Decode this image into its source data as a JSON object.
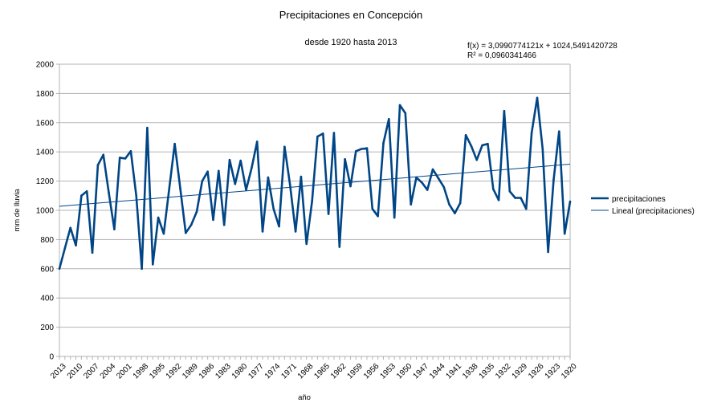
{
  "chart_data": {
    "type": "line",
    "title": "Precipitaciones en Concepción",
    "subtitle": "desde 1920 hasta 2013",
    "xlabel": "año",
    "ylabel": "mm de lluvia",
    "ylim": [
      0,
      2000
    ],
    "yticks": [
      "0",
      "200",
      "400",
      "600",
      "800",
      "1000",
      "1200",
      "1400",
      "1600",
      "1800",
      "2000"
    ],
    "grid": true,
    "legend_position": "right",
    "x": [
      2013,
      2012,
      2011,
      2010,
      2009,
      2008,
      2007,
      2006,
      2005,
      2004,
      2003,
      2002,
      2001,
      2000,
      1999,
      1998,
      1997,
      1996,
      1995,
      1994,
      1993,
      1992,
      1991,
      1990,
      1989,
      1988,
      1987,
      1986,
      1985,
      1984,
      1983,
      1982,
      1981,
      1980,
      1979,
      1978,
      1977,
      1976,
      1975,
      1974,
      1973,
      1972,
      1971,
      1970,
      1969,
      1968,
      1967,
      1966,
      1965,
      1964,
      1963,
      1962,
      1961,
      1960,
      1959,
      1958,
      1957,
      1956,
      1955,
      1954,
      1953,
      1952,
      1951,
      1950,
      1949,
      1948,
      1947,
      1946,
      1945,
      1944,
      1943,
      1942,
      1941,
      1940,
      1939,
      1938,
      1937,
      1936,
      1935,
      1934,
      1933,
      1932,
      1931,
      1930,
      1929,
      1928,
      1927,
      1926,
      1925,
      1924,
      1923,
      1922,
      1921,
      1920
    ],
    "xtick_labels": [
      "2013",
      "2010",
      "2007",
      "2004",
      "2001",
      "1998",
      "1995",
      "1992",
      "1989",
      "1986",
      "1983",
      "1980",
      "1977",
      "1974",
      "1971",
      "1968",
      "1965",
      "1962",
      "1959",
      "1956",
      "1953",
      "1950",
      "1947",
      "1944",
      "1941",
      "1938",
      "1935",
      "1932",
      "1929",
      "1926",
      "1923",
      "1920"
    ],
    "series": [
      {
        "name": "precipitaciones",
        "color": "#004586",
        "values": [
          600,
          740,
          880,
          760,
          1100,
          1130,
          710,
          1310,
          1380,
          1120,
          870,
          1360,
          1355,
          1405,
          1100,
          600,
          1565,
          630,
          950,
          840,
          1150,
          1455,
          1150,
          845,
          900,
          990,
          1200,
          1265,
          935,
          1270,
          900,
          1345,
          1180,
          1340,
          1140,
          1290,
          1470,
          855,
          1225,
          1010,
          890,
          1435,
          1175,
          855,
          1230,
          770,
          1060,
          1505,
          1525,
          975,
          1530,
          750,
          1350,
          1165,
          1405,
          1420,
          1425,
          1010,
          960,
          1460,
          1625,
          950,
          1720,
          1665,
          1040,
          1225,
          1190,
          1140,
          1280,
          1220,
          1160,
          1040,
          980,
          1050,
          1515,
          1440,
          1345,
          1445,
          1455,
          1145,
          1070,
          1680,
          1130,
          1085,
          1085,
          1010,
          1530,
          1770,
          1420,
          715,
          1210,
          1540,
          840,
          1060
        ]
      },
      {
        "name": "Lineal (precipitaciones)",
        "color": "#004586",
        "type": "trendline",
        "slope": 3.0990774121,
        "intercept": 1024.5491420728
      }
    ],
    "annotations": {
      "equation": "f(x) = 3,0990774121x + 1024,5491420728",
      "r_squared": "R² = 0,0960341466"
    }
  }
}
